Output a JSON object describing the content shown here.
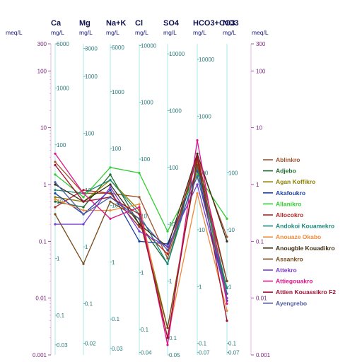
{
  "chart_data": {
    "type": "line",
    "title": "",
    "left_axis": {
      "unit": "meq/L",
      "scale": "log",
      "range": [
        0.001,
        300
      ],
      "ticks": [
        {
          "v": 300,
          "label": "300"
        },
        {
          "v": 100,
          "label": "100"
        },
        {
          "v": 10,
          "label": "10"
        },
        {
          "v": 1,
          "label": "1"
        },
        {
          "v": 0.1,
          "label": "0.1"
        },
        {
          "v": 0.01,
          "label": "0.01"
        },
        {
          "v": 0.001,
          "label": "0.001"
        }
      ]
    },
    "right_axis": {
      "unit": "meq/L",
      "ticks": [
        {
          "v": 300,
          "label": "300"
        },
        {
          "v": 100,
          "label": "100"
        },
        {
          "v": 10,
          "label": "10"
        },
        {
          "v": 1,
          "label": "1"
        },
        {
          "v": 0.1,
          "label": "0.1"
        },
        {
          "v": 0.01,
          "label": "0.01"
        },
        {
          "v": 0.001,
          "label": "0.001"
        }
      ]
    },
    "categories": [
      "Ca",
      "Mg",
      "Na+K",
      "Cl",
      "SO4",
      "HCO3+CO3",
      "NO3"
    ],
    "columns": [
      {
        "name": "Ca",
        "unit": "mg/L",
        "ticks": [
          {
            "v": 300,
            "label": "6000"
          },
          {
            "v": 50,
            "label": "1000"
          },
          {
            "v": 5,
            "label": "100"
          },
          {
            "v": 0.5,
            "label": "10"
          },
          {
            "v": 0.05,
            "label": "1"
          },
          {
            "v": 0.005,
            "label": "0.1"
          },
          {
            "v": 0.0015,
            "label": "0.03"
          }
        ]
      },
      {
        "name": "Mg",
        "unit": "mg/L",
        "ticks": [
          {
            "v": 250,
            "label": "3000"
          },
          {
            "v": 80,
            "label": "1000"
          },
          {
            "v": 8,
            "label": "100"
          },
          {
            "v": 0.8,
            "label": "10"
          },
          {
            "v": 0.08,
            "label": "1"
          },
          {
            "v": 0.008,
            "label": "0.1"
          },
          {
            "v": 0.0016,
            "label": "0.02"
          }
        ]
      },
      {
        "name": "Na+K",
        "unit": "mg/L",
        "ticks": [
          {
            "v": 260,
            "label": "6000"
          },
          {
            "v": 43,
            "label": "1000"
          },
          {
            "v": 4.3,
            "label": "100"
          },
          {
            "v": 0.43,
            "label": "10"
          },
          {
            "v": 0.043,
            "label": "1"
          },
          {
            "v": 0.0043,
            "label": "0.1"
          },
          {
            "v": 0.0013,
            "label": "0.03"
          }
        ]
      },
      {
        "name": "Cl",
        "unit": "mg/L",
        "ticks": [
          {
            "v": 280,
            "label": "10000"
          },
          {
            "v": 28,
            "label": "1000"
          },
          {
            "v": 2.8,
            "label": "100"
          },
          {
            "v": 0.28,
            "label": "10"
          },
          {
            "v": 0.028,
            "label": "1"
          },
          {
            "v": 0.0028,
            "label": "0.1"
          },
          {
            "v": 0.0011,
            "label": "0.04"
          }
        ]
      },
      {
        "name": "SO4",
        "unit": "mg/L",
        "ticks": [
          {
            "v": 200,
            "label": "10000"
          },
          {
            "v": 20,
            "label": "1000"
          },
          {
            "v": 2,
            "label": "100"
          },
          {
            "v": 0.2,
            "label": "10"
          },
          {
            "v": 0.02,
            "label": "1"
          },
          {
            "v": 0.002,
            "label": "0.1"
          },
          {
            "v": 0.001,
            "label": "0.05"
          }
        ]
      },
      {
        "name": "HCO3+CO3",
        "unit": "mg/L",
        "ticks": [
          {
            "v": 160,
            "label": "10000"
          },
          {
            "v": 16,
            "label": "1000"
          },
          {
            "v": 1.6,
            "label": "100"
          },
          {
            "v": 0.16,
            "label": "10"
          },
          {
            "v": 0.016,
            "label": "1"
          },
          {
            "v": 0.0016,
            "label": "0.1"
          },
          {
            "v": 0.0011,
            "label": "0.07"
          }
        ]
      },
      {
        "name": "NO3",
        "unit": "mg/L",
        "ticks": [
          {
            "v": 1.6,
            "label": "100"
          },
          {
            "v": 0.16,
            "label": "10"
          },
          {
            "v": 0.016,
            "label": "1"
          },
          {
            "v": 0.0016,
            "label": "0.1"
          },
          {
            "v": 0.0011,
            "label": "0.07"
          }
        ]
      }
    ],
    "series": [
      {
        "name": "Ablinkro",
        "color": "#a0522d",
        "values": [
          2.5,
          0.7,
          0.7,
          0.6,
          0.05,
          3,
          0.12
        ]
      },
      {
        "name": "Adjebo",
        "color": "#1e6b2e",
        "values": [
          0.5,
          0.4,
          1.5,
          0.2,
          0.04,
          3,
          0.012
        ]
      },
      {
        "name": "Agan Koffikro",
        "color": "#8b8000",
        "values": [
          0.6,
          0.5,
          1.2,
          0.35,
          0.003,
          2.5,
          0.01
        ]
      },
      {
        "name": "Akafoukro",
        "color": "#1f3fa0",
        "values": [
          0.7,
          0.3,
          0.8,
          0.1,
          0.09,
          1.8,
          0.009
        ]
      },
      {
        "name": "Allanikro",
        "color": "#33cc33",
        "values": [
          1.5,
          0.6,
          2.0,
          1.6,
          0.15,
          1.5,
          0.25
        ]
      },
      {
        "name": "Allocokro",
        "color": "#b22222",
        "values": [
          0.4,
          0.8,
          0.7,
          0.18,
          0.06,
          3.2,
          0.02
        ]
      },
      {
        "name": "Andokoi Kouamekro",
        "color": "#1a8a7a",
        "values": [
          0.8,
          0.7,
          1.2,
          0.3,
          0.04,
          2.0,
          0.015
        ]
      },
      {
        "name": "Anouaze Okabo",
        "color": "#f08a3a",
        "values": [
          0.55,
          0.35,
          0.35,
          0.45,
          0.002,
          0.7,
          0.006
        ]
      },
      {
        "name": "Anougble Kouadikro",
        "color": "#3a2a10",
        "values": [
          1.0,
          0.5,
          1.0,
          0.2,
          0.08,
          3.5,
          0.1
        ]
      },
      {
        "name": "Assankro",
        "color": "#7a4a1a",
        "values": [
          0.3,
          0.04,
          0.5,
          0.25,
          0.003,
          2.2,
          0.02
        ]
      },
      {
        "name": "Attekro",
        "color": "#7a3ad0",
        "values": [
          0.2,
          0.2,
          0.9,
          0.15,
          0.08,
          1.0,
          0.01
        ]
      },
      {
        "name": "Attiegouakro",
        "color": "#e0148a",
        "values": [
          3.5,
          0.7,
          0.25,
          0.4,
          0.0015,
          6.0,
          0.008
        ]
      },
      {
        "name": "Attien Kouassikro F2",
        "color": "#a01030",
        "values": [
          2.2,
          0.5,
          0.6,
          0.3,
          0.002,
          3.0,
          0.004
        ]
      },
      {
        "name": "Ayengrebo",
        "color": "#4a5aa0",
        "values": [
          1.1,
          0.3,
          0.6,
          0.25,
          0.07,
          1.4,
          0.012
        ]
      }
    ]
  }
}
